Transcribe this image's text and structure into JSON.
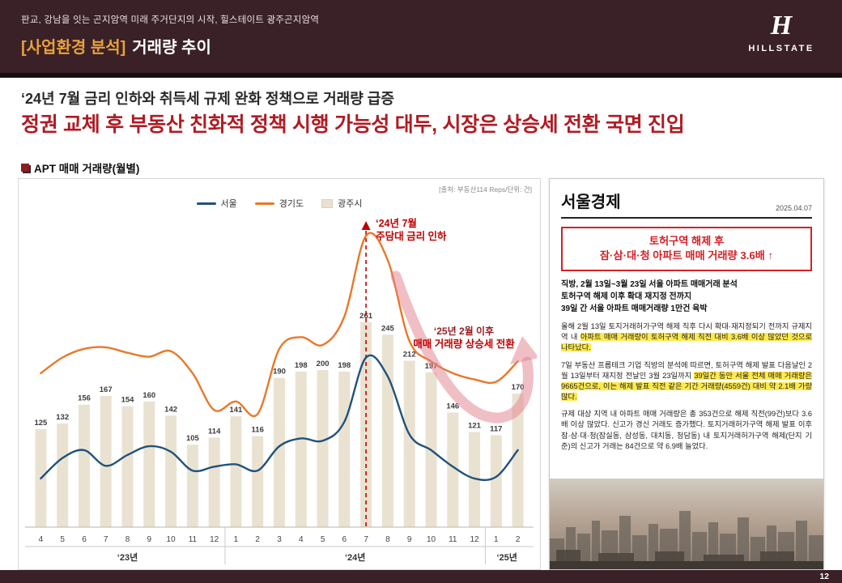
{
  "header": {
    "subtitle": "판교, 강남을 잇는 곤지암역 미래 주거단지의 시작, 힐스테이트 광주곤지암역",
    "title_prefix": "[사업환경 분석]",
    "title": "거래량 추이",
    "brand": "HILLSTATE",
    "brand_monogram": "H"
  },
  "headline": {
    "line1": "‘24년 7월 금리 인하와 취득세 규제 완화 정책으로 거래량 급증",
    "line2": "정권 교체 후 부동산 친화적 정책 시행 가능성 대두, 시장은 상승세 전환 국면 진입"
  },
  "chart": {
    "label": "APT 매매 거래량(월별)",
    "source": "[출처: 부동산114 Reps/단위: 건]",
    "legend": [
      {
        "label": "서울",
        "type": "line",
        "key": "seoul"
      },
      {
        "label": "경기도",
        "type": "line",
        "key": "gyeonggi"
      },
      {
        "label": "광주시",
        "type": "bar",
        "key": "gwangju"
      }
    ]
  },
  "chart_data": {
    "type": "bar",
    "unit": "건",
    "y_max": 400,
    "y_axis_visible": false,
    "months": [
      "4",
      "5",
      "6",
      "7",
      "8",
      "9",
      "10",
      "11",
      "12",
      "1",
      "2",
      "3",
      "4",
      "5",
      "6",
      "7",
      "8",
      "9",
      "10",
      "11",
      "12",
      "1",
      "2"
    ],
    "year_groups": [
      {
        "label": "‘23년",
        "span": 9
      },
      {
        "label": "‘24년",
        "span": 12
      },
      {
        "label": "‘25년",
        "span": 2
      }
    ],
    "bars": {
      "key": "gwangju",
      "name": "광주시",
      "values": [
        125,
        132,
        156,
        167,
        154,
        160,
        142,
        105,
        114,
        141,
        116,
        190,
        198,
        200,
        198,
        261,
        245,
        212,
        197,
        146,
        121,
        117,
        170
      ]
    },
    "lines": [
      {
        "key": "seoul",
        "name": "서울",
        "estimated": true,
        "values": [
          62,
          88,
          98,
          78,
          92,
          103,
          96,
          72,
          77,
          80,
          72,
          103,
          113,
          110,
          134,
          216,
          192,
          118,
          98,
          77,
          62,
          64,
          98
        ]
      },
      {
        "key": "gyeonggi",
        "name": "경기도",
        "estimated": true,
        "values": [
          196,
          216,
          227,
          229,
          222,
          217,
          224,
          196,
          149,
          160,
          144,
          227,
          242,
          232,
          268,
          371,
          340,
          237,
          211,
          196,
          188,
          185,
          211
        ]
      }
    ],
    "annotations": {
      "peak": {
        "index": 15,
        "line1": "‘24년 7월",
        "line2": "주담대 금리 인하"
      },
      "turn": {
        "line1": "‘25년 2월 이후",
        "line2": "매매 거래량 상승세 전환"
      }
    }
  },
  "article": {
    "source": "서울경제",
    "date": "2025.04.07",
    "headline_lines": [
      "토허구역 해제 후",
      "잠·삼·대·청 아파트 매매 거래량 3.6배 ↑"
    ],
    "deck_lines": [
      "직방, 2월 13일~3월 23일 서울 아파트 매매거래 분석",
      "토허구역 해제 이후 확대 재지정 전까지",
      "39일 간 서울 아파트 매매거래량 1만건 육박"
    ],
    "paragraphs": [
      {
        "segments": [
          {
            "text": "올해 2월 13일 토지거래허가구역 해제 직후 다시 확대·재지정되기 전까지 규제지역 내 ",
            "hl": false
          },
          {
            "text": "아파트 매매 거래량이 토허구역 해제 직전 대비 3.6배 이상 많았던 것으로 나타났다.",
            "hl": true
          }
        ]
      },
      {
        "segments": [
          {
            "text": "7일 부동산 프롭테크 기업 직방의 분석에 따르면, 토허구역 해제 발표 다음날인 2월 13일부터 재지정 전날인 3월 23일까지 ",
            "hl": false
          },
          {
            "text": "39일간 동안 서울 전체 매매 거래량은 9665건으로, 이는 해제 발표 직전 같은 기간 거래량(4559건) 대비 약 2.1배 가량 많다.",
            "hl": true
          }
        ]
      },
      {
        "segments": [
          {
            "text": "규제 대상 지역 내 아파트 매매 거래량은 총 353건으로 해제 직전(99건)보다 3.6배 이상 많았다. 신고가 경신 거래도 증가했다. 토지거래허가구역 해제 발표 이후 잠·삼·대·청(잠실동, 삼성동, 대치동, 청담동) 내 토지거래허가구역 해제(단지 기준)의 신고가 거래는 84건으로 약 6.9배 늘었다.",
            "hl": false
          }
        ]
      }
    ]
  },
  "footer": {
    "page_number": "12"
  },
  "colors": {
    "maroon": "#3a2127",
    "maroon_dark": "#190d11",
    "gold": "#e8a13c",
    "headline_red": "#b01b23",
    "annotation_red": "#c00000",
    "annotation_maroon": "#9a1c23",
    "seoul": "#20527c",
    "gyeonggi": "#e8782a",
    "gwangju": "#eae2d1",
    "swoosh": "rgba(226,128,140,0.5)",
    "highlight": "#ffe94d",
    "article_red": "#d42026"
  }
}
